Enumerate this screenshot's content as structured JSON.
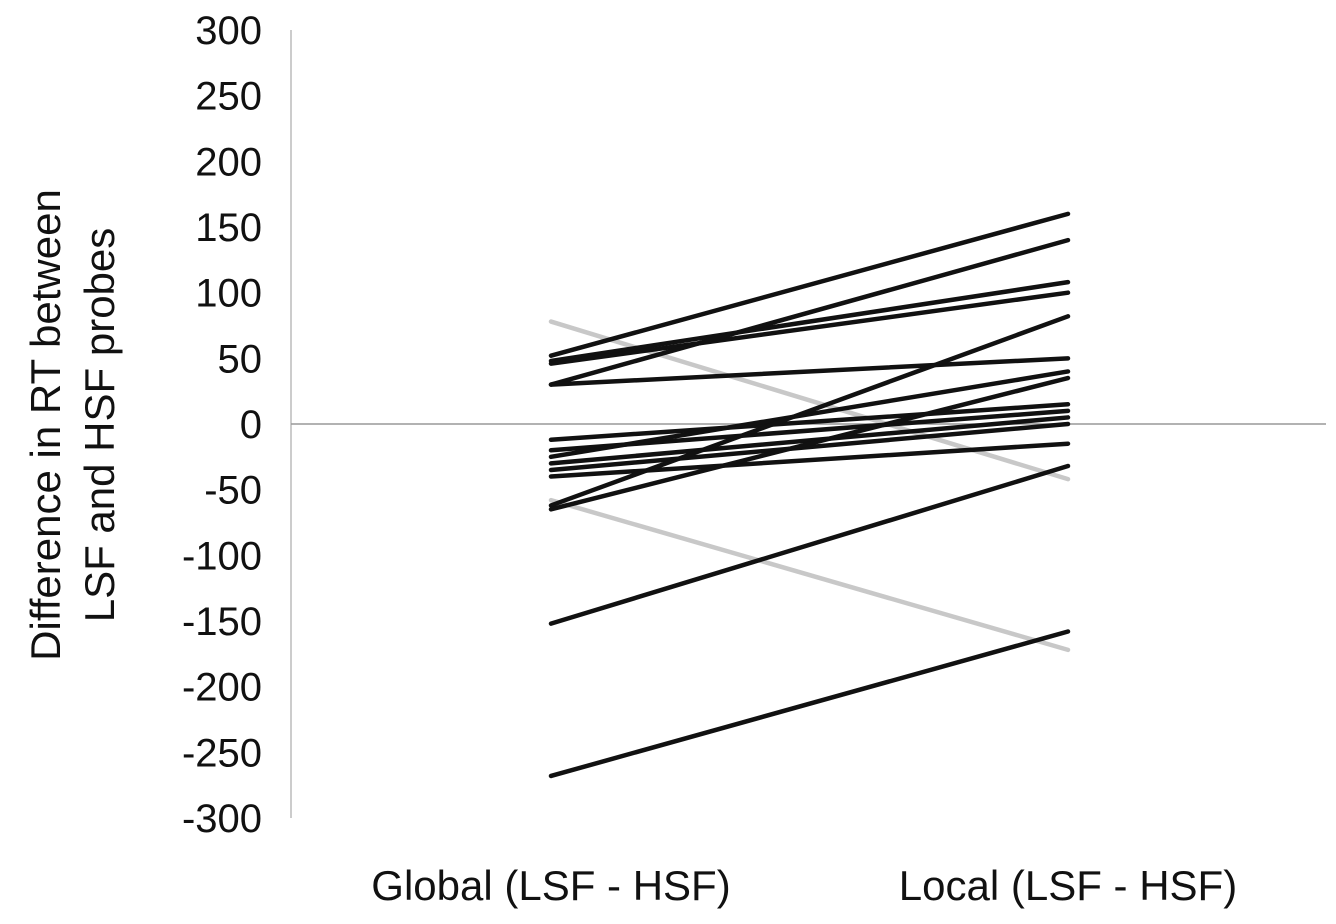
{
  "chart_data": {
    "type": "line",
    "title": "",
    "ylabel_lines": [
      "Difference in RT between",
      "LSF and HSF probes"
    ],
    "categories": [
      "Global (LSF - HSF)",
      "Local (LSF - HSF)"
    ],
    "ylim": [
      -300,
      300
    ],
    "yticks": [
      300,
      250,
      200,
      150,
      100,
      50,
      0,
      -50,
      -100,
      -150,
      -200,
      -250,
      -300
    ],
    "grid": false,
    "legend": "none",
    "colors": {
      "primary": "#111111",
      "highlight": "#c8c8c8",
      "zero_line": "#999999",
      "axis": "#bbbbbb"
    },
    "series": [
      {
        "values": [
          52,
          160
        ],
        "color": "#111111"
      },
      {
        "values": [
          48,
          108
        ],
        "color": "#111111"
      },
      {
        "values": [
          46,
          100
        ],
        "color": "#111111"
      },
      {
        "values": [
          30,
          140
        ],
        "color": "#111111"
      },
      {
        "values": [
          30,
          50
        ],
        "color": "#111111"
      },
      {
        "values": [
          -12,
          15
        ],
        "color": "#111111"
      },
      {
        "values": [
          -20,
          10
        ],
        "color": "#111111"
      },
      {
        "values": [
          -25,
          40
        ],
        "color": "#111111"
      },
      {
        "values": [
          -30,
          5
        ],
        "color": "#111111"
      },
      {
        "values": [
          -35,
          0
        ],
        "color": "#111111"
      },
      {
        "values": [
          -40,
          -15
        ],
        "color": "#111111"
      },
      {
        "values": [
          -62,
          82
        ],
        "color": "#111111"
      },
      {
        "values": [
          -65,
          35
        ],
        "color": "#111111"
      },
      {
        "values": [
          -152,
          -32
        ],
        "color": "#111111"
      },
      {
        "values": [
          -268,
          -158
        ],
        "color": "#111111"
      },
      {
        "values": [
          78,
          -42
        ],
        "color": "#c8c8c8"
      },
      {
        "values": [
          -58,
          -172
        ],
        "color": "#c8c8c8"
      }
    ]
  }
}
